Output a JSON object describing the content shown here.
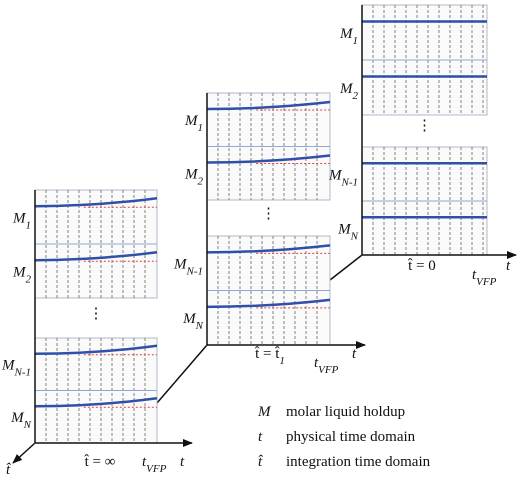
{
  "panels": [
    {
      "rows": [
        {
          "base": "M",
          "sub": "1"
        },
        {
          "base": "M",
          "sub": "2"
        },
        {
          "base": "M",
          "sub": "N-1"
        },
        {
          "base": "M",
          "sub": "N"
        }
      ],
      "dots": "⋮",
      "time_label": {
        "base": "t̂ = ∞"
      },
      "t_vfp": {
        "base": "t",
        "sub": "VFP"
      },
      "axis_label": "t"
    },
    {
      "rows": [
        {
          "base": "M",
          "sub": "1"
        },
        {
          "base": "M",
          "sub": "2"
        },
        {
          "base": "M",
          "sub": "N-1"
        },
        {
          "base": "M",
          "sub": "N"
        }
      ],
      "dots": "⋮",
      "time_label": {
        "base": "t̂ = t̂",
        "sub": "1"
      },
      "t_vfp": {
        "base": "t",
        "sub": "VFP"
      },
      "axis_label": "t"
    },
    {
      "rows": [
        {
          "base": "M",
          "sub": "1"
        },
        {
          "base": "M",
          "sub": "2"
        },
        {
          "base": "M",
          "sub": "N-1"
        },
        {
          "base": "M",
          "sub": "N"
        }
      ],
      "dots": "⋮",
      "time_label": {
        "base": "t̂ = 0"
      },
      "t_vfp": {
        "base": "t",
        "sub": "VFP"
      },
      "axis_label": "t"
    }
  ],
  "vertical_axis_label": "t̂",
  "legend": [
    {
      "symbol": "M",
      "text": "molar liquid holdup"
    },
    {
      "symbol": "t",
      "text": "physical time domain"
    },
    {
      "symbol": "t̂",
      "text": "integration time domain"
    }
  ]
}
